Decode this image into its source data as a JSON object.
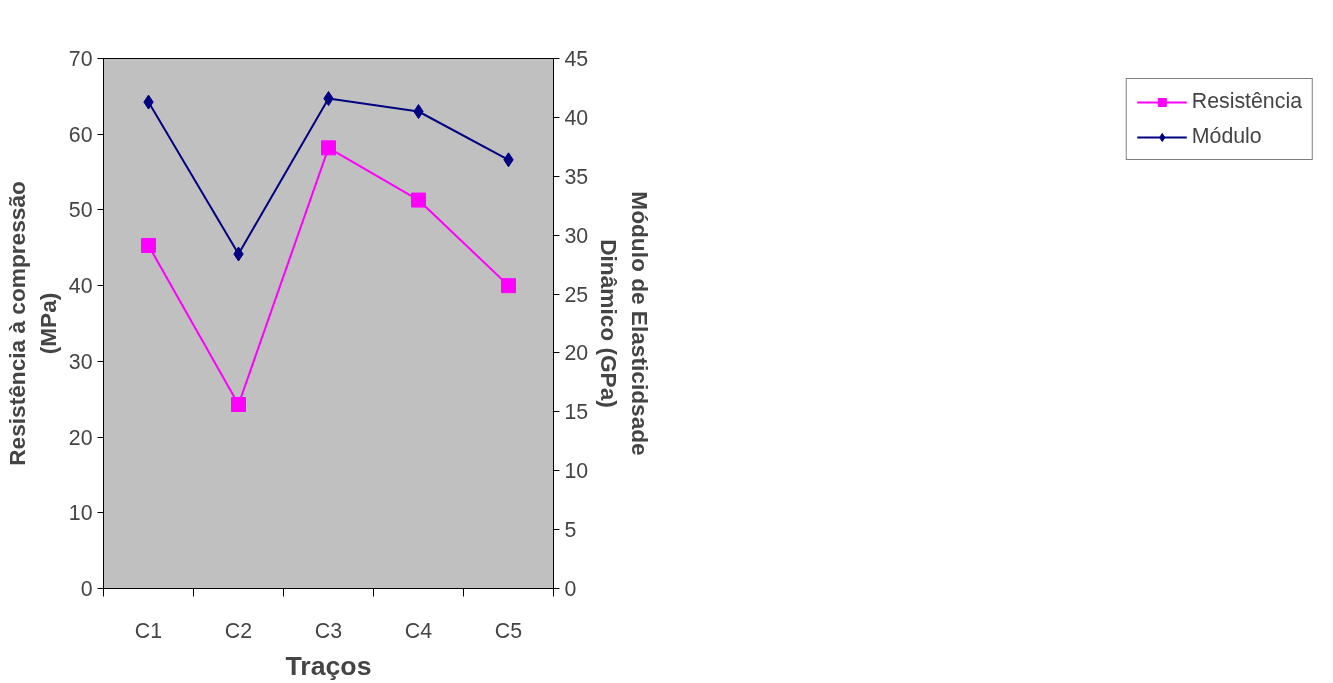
{
  "chart_data": {
    "type": "line",
    "xlabel": "Traços",
    "ylabel": "Resistência à compressão\n(MPa)",
    "y2label": "Módulo de Elasticidsade\nDinâmico (GPa)",
    "categories": [
      "C1",
      "C2",
      "C3",
      "C4",
      "C5"
    ],
    "series": [
      {
        "name": "Resistência",
        "color": "#ff00ff",
        "marker": "square",
        "values": [
          45.3,
          24.3,
          58.2,
          51.3,
          40.0
        ]
      },
      {
        "name": "Módulo",
        "color": "#000080",
        "marker": "diamond",
        "axis": "y2",
        "values": [
          41.3,
          28.4,
          41.6,
          40.5,
          36.4
        ]
      }
    ],
    "ylim": [
      0,
      70
    ],
    "yticks": [
      0,
      10,
      20,
      30,
      40,
      50,
      60,
      70
    ],
    "y2lim": [
      0,
      45
    ],
    "y2ticks": [
      0,
      5,
      10,
      15,
      20,
      25,
      30,
      35,
      40,
      45
    ],
    "grid": false,
    "legend": "right",
    "line_style": "solid"
  }
}
